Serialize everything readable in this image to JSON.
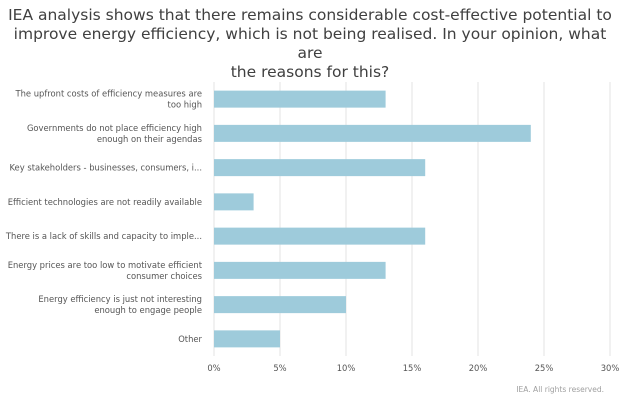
{
  "chart_data": {
    "type": "bar",
    "orientation": "horizontal",
    "title_lines": [
      "IEA analysis shows that there remains considerable cost-effective potential to",
      "improve energy efficiency, which is not being realised. In your opinion, what are",
      "the reasons for this?"
    ],
    "categories": [
      [
        "The upfront costs of efficiency measures are",
        "too high"
      ],
      [
        "Governments do not place efficiency high",
        "enough on their agendas"
      ],
      [
        "Key stakeholders - businesses, consumers, i..."
      ],
      [
        "Efficient technologies are not readily available"
      ],
      [
        "There is a lack of skills and capacity to imple..."
      ],
      [
        "Energy prices are too low to motivate efficient",
        "consumer choices"
      ],
      [
        "Energy efficiency is just not interesting",
        "enough to engage people"
      ],
      [
        "Other"
      ]
    ],
    "values": [
      13,
      24,
      16,
      3,
      16,
      13,
      10,
      5
    ],
    "xlim": [
      0,
      30
    ],
    "xticks": [
      0,
      5,
      10,
      15,
      20,
      25,
      30
    ],
    "xtick_labels": [
      "0%",
      "5%",
      "10%",
      "15%",
      "20%",
      "25%",
      "30%"
    ],
    "unit": "%",
    "grid": true,
    "colors": {
      "bar": "#9ecbdb",
      "grid": "#e3e3e3",
      "text": "#555555"
    }
  },
  "footer": {
    "credit": "IEA. All rights reserved."
  }
}
